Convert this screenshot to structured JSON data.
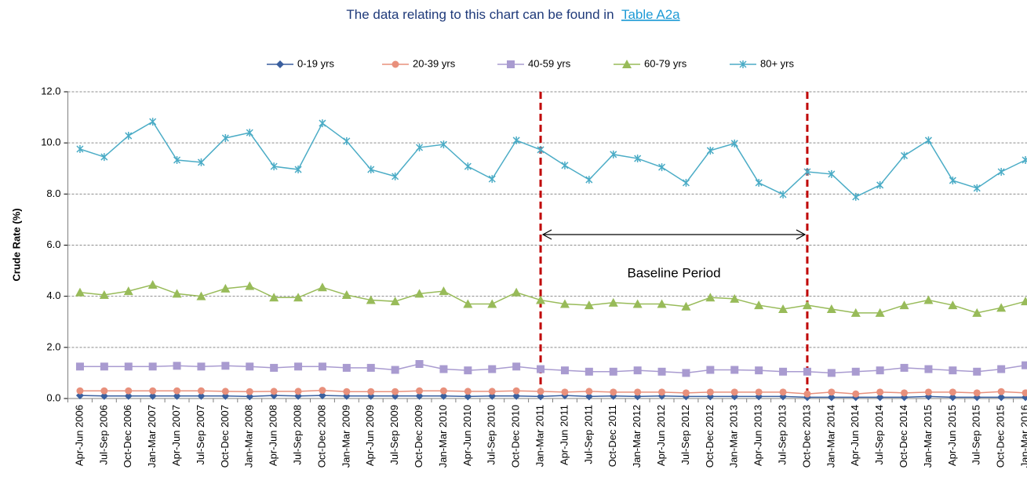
{
  "chart_data": {
    "type": "line",
    "title": "The data relating to this chart can be found in",
    "title_link": "Table A2a",
    "y_label": "Crude Rate (%)",
    "categories": [
      "Apr-Jun 2006",
      "Jul-Sep 2006",
      "Oct-Dec 2006",
      "Jan-Mar 2007",
      "Apr-Jun 2007",
      "Jul-Sep 2007",
      "Oct-Dec 2007",
      "Jan-Mar 2008",
      "Apr-Jun 2008",
      "Jul-Sep 2008",
      "Oct-Dec 2008",
      "Jan-Mar 2009",
      "Apr-Jun 2009",
      "Jul-Sep 2009",
      "Oct-Dec 2009",
      "Jan-Mar 2010",
      "Apr-Jun 2010",
      "Jul-Sep 2010",
      "Oct-Dec 2010",
      "Jan-Mar 2011",
      "Apr-Jun 2011",
      "Jul-Sep 2011",
      "Oct-Dec 2011",
      "Jan-Mar 2012",
      "Apr-Jun 2012",
      "Jul-Sep 2012",
      "Oct-Dec 2012",
      "Jan-Mar 2013",
      "Apr-Jun 2013",
      "Jul-Sep 2013",
      "Oct-Dec 2013",
      "Jan-Mar 2014",
      "Apr-Jun 2014",
      "Jul-Sep 2014",
      "Oct-Dec 2014",
      "Jan-Mar 2015",
      "Apr-Jun 2015",
      "Jul-Sep 2015",
      "Oct-Dec 2015",
      "Jan-Mar 2016"
    ],
    "series": [
      {
        "name": "0-19 yrs",
        "color": "#3a5f9e",
        "marker": "diamond",
        "values": [
          0.12,
          0.1,
          0.1,
          0.1,
          0.1,
          0.1,
          0.1,
          0.08,
          0.12,
          0.1,
          0.12,
          0.1,
          0.1,
          0.1,
          0.1,
          0.1,
          0.08,
          0.1,
          0.1,
          0.08,
          0.12,
          0.08,
          0.1,
          0.08,
          0.1,
          0.08,
          0.08,
          0.08,
          0.08,
          0.08,
          0.05,
          0.05,
          0.05,
          0.05,
          0.05,
          0.08,
          0.05,
          0.05,
          0.05,
          0.05
        ]
      },
      {
        "name": "20-39 yrs",
        "color": "#e8907c",
        "marker": "circle",
        "values": [
          0.3,
          0.3,
          0.3,
          0.3,
          0.3,
          0.3,
          0.28,
          0.27,
          0.28,
          0.28,
          0.32,
          0.27,
          0.27,
          0.27,
          0.3,
          0.3,
          0.28,
          0.28,
          0.3,
          0.28,
          0.25,
          0.28,
          0.25,
          0.25,
          0.25,
          0.22,
          0.25,
          0.25,
          0.25,
          0.25,
          0.18,
          0.25,
          0.18,
          0.25,
          0.22,
          0.25,
          0.25,
          0.22,
          0.27,
          0.22
        ]
      },
      {
        "name": "40-59 yrs",
        "color": "#a99bd0",
        "marker": "square",
        "values": [
          1.25,
          1.25,
          1.25,
          1.25,
          1.28,
          1.25,
          1.28,
          1.25,
          1.2,
          1.25,
          1.25,
          1.2,
          1.2,
          1.12,
          1.35,
          1.15,
          1.1,
          1.15,
          1.25,
          1.15,
          1.1,
          1.05,
          1.05,
          1.1,
          1.05,
          1.0,
          1.12,
          1.12,
          1.1,
          1.05,
          1.05,
          1.0,
          1.05,
          1.1,
          1.2,
          1.15,
          1.1,
          1.05,
          1.15,
          1.3
        ]
      },
      {
        "name": "60-79 yrs",
        "color": "#98bb59",
        "marker": "triangle",
        "values": [
          4.15,
          4.05,
          4.2,
          4.45,
          4.1,
          4.0,
          4.3,
          4.4,
          3.95,
          3.95,
          4.35,
          4.05,
          3.85,
          3.8,
          4.1,
          4.2,
          3.7,
          3.7,
          4.15,
          3.85,
          3.7,
          3.65,
          3.75,
          3.7,
          3.7,
          3.6,
          3.95,
          3.9,
          3.65,
          3.5,
          3.65,
          3.5,
          3.35,
          3.35,
          3.65,
          3.85,
          3.65,
          3.35,
          3.55,
          3.8
        ]
      },
      {
        "name": "80+ yrs",
        "color": "#4bacc6",
        "marker": "star",
        "values": [
          9.76,
          9.45,
          10.28,
          10.83,
          9.33,
          9.24,
          10.19,
          10.4,
          9.08,
          8.96,
          10.77,
          10.07,
          8.96,
          8.69,
          9.82,
          9.94,
          9.08,
          8.59,
          10.1,
          9.73,
          9.12,
          8.56,
          9.55,
          9.39,
          9.05,
          8.44,
          9.7,
          9.98,
          8.44,
          7.98,
          8.87,
          8.78,
          7.89,
          8.35,
          9.5,
          10.1,
          8.53,
          8.23,
          8.87,
          9.33
        ]
      }
    ],
    "ylim": [
      0,
      12
    ],
    "yticks": [
      {
        "value": 0,
        "label": "0.0"
      },
      {
        "value": 2,
        "label": "2.0"
      },
      {
        "value": 4,
        "label": "4.0"
      },
      {
        "value": 6,
        "label": "6.0"
      },
      {
        "value": 8,
        "label": "8.0"
      },
      {
        "value": 10,
        "label": "10.0"
      },
      {
        "value": 12,
        "label": "12.0"
      }
    ],
    "grid": true,
    "legend": "top",
    "baseline": {
      "label": "Baseline Period",
      "start": "Jan-Mar 2011",
      "end": "Oct-Dec 2013",
      "color": "#c00000"
    }
  }
}
